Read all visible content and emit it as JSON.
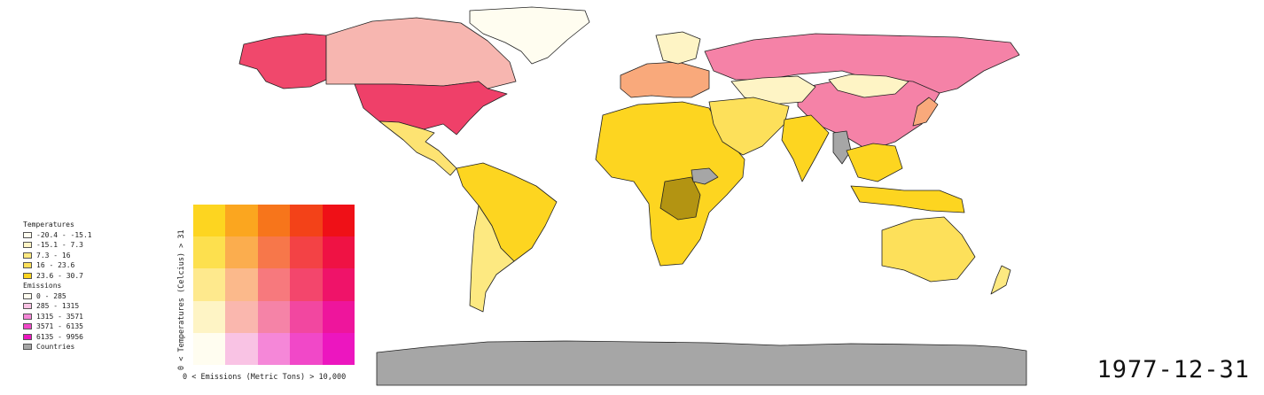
{
  "map": {
    "countries": [
      {
        "name": "Greenland",
        "color": "#fffdf0"
      },
      {
        "name": "Alaska",
        "color": "#f0486c"
      },
      {
        "name": "Canada",
        "color": "#f7b6b0"
      },
      {
        "name": "United States",
        "color": "#ef4069"
      },
      {
        "name": "Mexico and Central America",
        "color": "#fde372"
      },
      {
        "name": "South America",
        "color": "#fdd520"
      },
      {
        "name": "Chile and Argentina",
        "color": "#fde981"
      },
      {
        "name": "Russia",
        "color": "#f582a7"
      },
      {
        "name": "China",
        "color": "#f582a7"
      },
      {
        "name": "Mongolia",
        "color": "#fef4c5"
      },
      {
        "name": "Kazakhstan",
        "color": "#fef4c5"
      },
      {
        "name": "Europe",
        "color": "#f9a97b"
      },
      {
        "name": "Scandinavia",
        "color": "#fef4c5"
      },
      {
        "name": "Africa",
        "color": "#fdd520"
      },
      {
        "name": "DR Congo",
        "color": "#b39412"
      },
      {
        "name": "South Sudan",
        "color": "#a6a6a6"
      },
      {
        "name": "Middle East",
        "color": "#fde05a"
      },
      {
        "name": "India",
        "color": "#fdd520"
      },
      {
        "name": "Myanmar",
        "color": "#a6a6a6"
      },
      {
        "name": "Southeast Asia",
        "color": "#fdd520"
      },
      {
        "name": "Japan",
        "color": "#f9a97b"
      },
      {
        "name": "Indonesia",
        "color": "#fdd520"
      },
      {
        "name": "Australia",
        "color": "#fde05a"
      },
      {
        "name": "New Zealand",
        "color": "#fde981"
      },
      {
        "name": "Antarctica",
        "color": "#a6a6a6"
      }
    ]
  },
  "legend": {
    "temperatures_title": "Temperatures",
    "temperatures": [
      {
        "label": "-20.4 - -15.1",
        "color": "#fffdf0"
      },
      {
        "label": "-15.1 - 7.3",
        "color": "#fef4c5"
      },
      {
        "label": "7.3 - 16",
        "color": "#fde981"
      },
      {
        "label": "16 - 23.6",
        "color": "#fde05a"
      },
      {
        "label": "23.6 - 30.7",
        "color": "#fdd520"
      }
    ],
    "emissions_title": "Emissions",
    "emissions": [
      {
        "label": "0 - 285",
        "color": "#fffdf0"
      },
      {
        "label": "285 - 1315",
        "color": "#f9c3e4"
      },
      {
        "label": "1315 - 3571",
        "color": "#f587d8"
      },
      {
        "label": "3571 - 6135",
        "color": "#f148c8"
      },
      {
        "label": "6135 - 9956",
        "color": "#ec16bf"
      }
    ],
    "countries_label": "Countries",
    "countries_color": "#a6a6a6"
  },
  "bivariate": {
    "rows": [
      [
        "#fdd520",
        "#fba61f",
        "#f7751b",
        "#f34218",
        "#ef1017"
      ],
      [
        "#fde04e",
        "#fbad4e",
        "#f7774a",
        "#f34245",
        "#ef1244"
      ],
      [
        "#fee98d",
        "#fbb98b",
        "#f7797d",
        "#f3466c",
        "#ef1369"
      ],
      [
        "#fef4c5",
        "#fab7ae",
        "#f583a7",
        "#f247a0",
        "#ee159c"
      ],
      [
        "#fffdf0",
        "#f9c3e4",
        "#f587d8",
        "#f148c8",
        "#ec16bf"
      ]
    ],
    "y_label": "0 < Temperatures (Celcius) > 31",
    "x_label": "0 < Emissions (Metric Tons) > 10,000"
  },
  "date": "1977-12-31"
}
